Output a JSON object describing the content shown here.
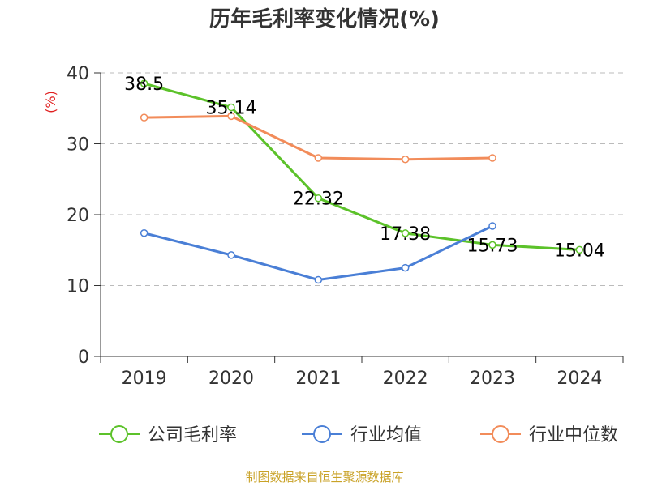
{
  "title": "历年毛利率变化情况(%)",
  "source": "制图数据来自恒生聚源数据库",
  "colors": {
    "axis": "#333333",
    "grid": "#bbbbbb",
    "unit": "#e02020",
    "source": "#c9a227"
  },
  "chart_data": {
    "type": "line",
    "categories": [
      "2019",
      "2020",
      "2021",
      "2022",
      "2023",
      "2024"
    ],
    "ylim": [
      0,
      40
    ],
    "yticks": [
      0,
      10,
      20,
      30,
      40
    ],
    "ylabel": "(%)",
    "xlabel": "",
    "grid": true,
    "legend_position": "bottom",
    "series": [
      {
        "name": "公司毛利率",
        "color": "#5cc22a",
        "values": [
          38.5,
          35.14,
          22.32,
          17.38,
          15.73,
          15.04
        ],
        "labels": [
          "38.5",
          "35.14",
          "22.32",
          "17.38",
          "15.73",
          "15.04"
        ]
      },
      {
        "name": "行业均值",
        "color": "#4a7fd6",
        "values": [
          17.4,
          14.3,
          10.8,
          12.5,
          18.4,
          null
        ],
        "labels": []
      },
      {
        "name": "行业中位数",
        "color": "#f28c5a",
        "values": [
          33.7,
          33.9,
          28.0,
          27.8,
          28.0,
          null
        ],
        "labels": []
      }
    ]
  }
}
